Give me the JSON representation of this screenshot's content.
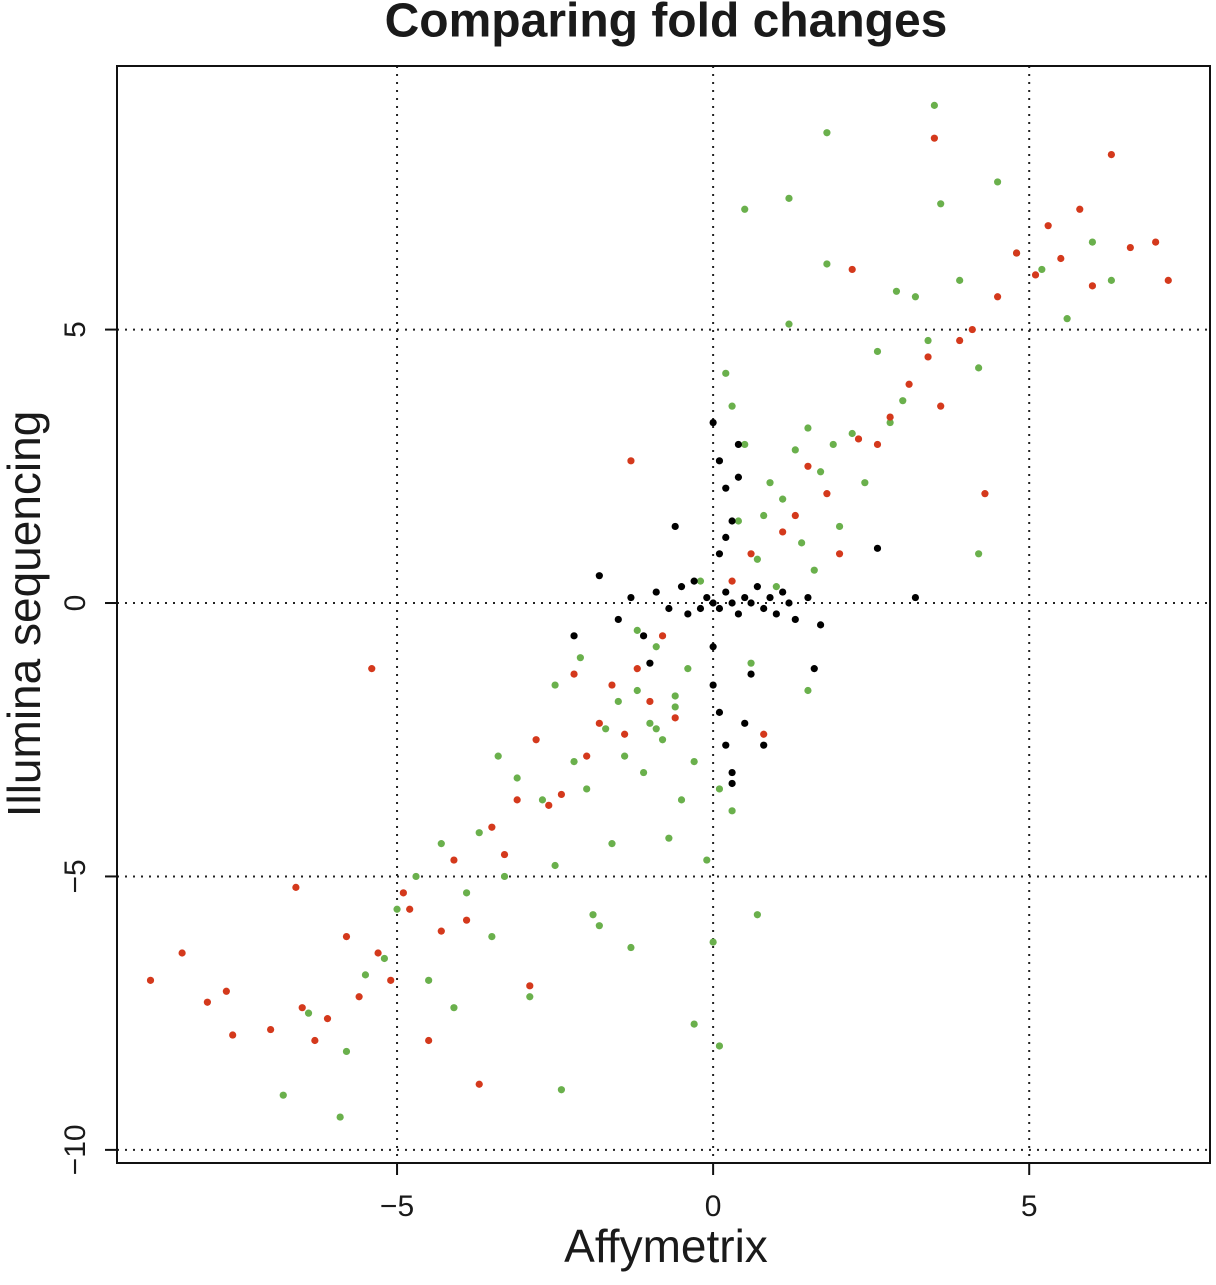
{
  "chart_data": {
    "type": "scatter",
    "title": "Comparing fold changes",
    "x_label": "Affymetrix",
    "y_label": "Illumina sequencing",
    "xlim": [
      -9.43,
      7.86
    ],
    "ylim": [
      -10.24,
      9.82
    ],
    "xticks": [
      {
        "value": -5,
        "label": "−5"
      },
      0,
      5
    ],
    "yticks": [
      {
        "value": -10,
        "label": "−10"
      },
      {
        "value": -5,
        "label": "−5"
      },
      0,
      5
    ],
    "grid": true,
    "series": [
      {
        "color": "#6ab04c",
        "x": [
          -6.8,
          -6.4,
          -5.9,
          -5.8,
          -5.5,
          -5.2,
          -5,
          -4.7,
          -4.5,
          -4.3,
          -4.1,
          -3.9,
          -3.7,
          -3.5,
          -3.3,
          -3.1,
          -2.9,
          -2.7,
          -2.5,
          -2.4,
          -2.2,
          -2,
          -1.9,
          -1.7,
          -1.6,
          -1.5,
          -1.4,
          -1.3,
          -1.2,
          -1.1,
          -1,
          -0.9,
          -0.8,
          -0.7,
          -0.6,
          -0.5,
          -0.4,
          -0.3,
          -0.2,
          -0.1,
          0,
          0.1,
          0.2,
          0.3,
          0.4,
          0.5,
          0.6,
          0.7,
          0.8,
          0.9,
          1,
          1.1,
          1.2,
          1.3,
          1.4,
          1.5,
          1.6,
          1.7,
          1.8,
          1.9,
          2,
          2.2,
          2.4,
          2.6,
          2.8,
          3,
          3.2,
          3.4,
          3.6,
          3.9,
          4.2,
          4.5,
          4.8,
          5.2,
          5.6,
          6,
          6.3,
          1.8,
          3.5,
          0.5,
          1.2,
          -0.6,
          -1.2,
          -2.5,
          -0.3,
          0.1,
          -1.8,
          -2.1,
          -3.4,
          0.7,
          1.5,
          -0.9,
          0.3,
          2.9,
          4.2
        ],
        "values": [
          -9,
          -7.5,
          -9.4,
          -8.2,
          -6.8,
          -6.5,
          -5.6,
          -5,
          -6.9,
          -4.4,
          -7.4,
          -5.3,
          -4.2,
          -6.1,
          -5,
          -3.2,
          -7.2,
          -3.6,
          -4.8,
          -8.9,
          -2.9,
          -3.4,
          -5.7,
          -2.3,
          -4.4,
          -1.8,
          -2.8,
          -6.3,
          -1.6,
          -3.1,
          -2.2,
          -0.8,
          -2.5,
          -4.3,
          -1.7,
          -3.6,
          -1.2,
          -2.9,
          0.4,
          -4.7,
          -6.2,
          -3.4,
          4.2,
          3.6,
          1.5,
          2.9,
          -1.1,
          0.8,
          1.6,
          2.2,
          0.3,
          1.9,
          5.1,
          2.8,
          1.1,
          3.2,
          0.6,
          2.4,
          6.2,
          2.9,
          1.4,
          3.1,
          2.2,
          4.6,
          3.3,
          3.7,
          5.6,
          4.8,
          7.3,
          5.9,
          4.3,
          7.7,
          6.4,
          6.1,
          5.2,
          6.6,
          5.9,
          8.6,
          9.1,
          7.2,
          7.4,
          -1.9,
          -0.5,
          -1.5,
          -7.7,
          -8.1,
          -5.9,
          -1,
          -2.8,
          -5.7,
          -1.6,
          -2.3,
          -3.8,
          5.7,
          0.9
        ]
      },
      {
        "color": "#d4391c",
        "x": [
          -8.9,
          -8.4,
          -8,
          -7.7,
          -7.6,
          -7,
          -6.6,
          -6.5,
          -6.3,
          -6.1,
          -5.8,
          -5.6,
          -5.4,
          -5.3,
          -5.1,
          -4.9,
          -4.8,
          -4.5,
          -4.3,
          -4.1,
          -3.9,
          -3.7,
          -3.5,
          -3.3,
          -3.1,
          -2.9,
          -2.8,
          -2.6,
          -2.4,
          -2.2,
          -2,
          -1.8,
          -1.6,
          -1.4,
          -1.3,
          -1.2,
          -1,
          -0.8,
          -0.6,
          0.3,
          0.6,
          0.8,
          1.1,
          1.3,
          1.5,
          1.8,
          2,
          2.3,
          2.6,
          2.8,
          3.1,
          3.4,
          3.6,
          3.9,
          4.1,
          4.3,
          4.5,
          4.8,
          5.1,
          5.3,
          5.5,
          5.8,
          6,
          6.3,
          6.6,
          7,
          7.2,
          3.5,
          2.2
        ],
        "values": [
          -6.9,
          -6.4,
          -7.3,
          -7.1,
          -7.9,
          -7.8,
          -5.2,
          -7.4,
          -8,
          -7.6,
          -6.1,
          -7.2,
          -1.2,
          -6.4,
          -6.9,
          -5.3,
          -5.6,
          -8,
          -6,
          -4.7,
          -5.8,
          -8.8,
          -4.1,
          -4.6,
          -3.6,
          -7,
          -2.5,
          -3.7,
          -3.5,
          -1.3,
          -2.8,
          -2.2,
          -1.5,
          -2.4,
          2.6,
          -1.2,
          -1.8,
          -0.6,
          -2.1,
          0.4,
          0.9,
          -2.4,
          1.3,
          1.6,
          2.5,
          2,
          0.9,
          3,
          2.9,
          3.4,
          4,
          4.5,
          3.6,
          4.8,
          5,
          2,
          5.6,
          6.4,
          6,
          6.9,
          6.3,
          7.2,
          5.8,
          8.2,
          6.5,
          6.6,
          5.9,
          8.5,
          6.1
        ]
      },
      {
        "color": "#000000",
        "x": [
          -1.5,
          -1.3,
          -1.1,
          -0.9,
          -0.7,
          -0.5,
          -0.4,
          -0.3,
          -0.2,
          -0.1,
          0,
          0.1,
          0.2,
          0.3,
          0.4,
          0.5,
          0.6,
          0.7,
          0.8,
          0.9,
          1,
          1.1,
          1.2,
          1.3,
          1.5,
          1.7,
          -1.8,
          -2.2,
          -1,
          0,
          0.1,
          0.2,
          0.3,
          0,
          0.1,
          0.2,
          0.3,
          0.1,
          0.2,
          0,
          0.3,
          0.4,
          0.5,
          0.4,
          0.6,
          2.6,
          3.2,
          1.6,
          0.8,
          -0.6
        ],
        "values": [
          -0.3,
          0.1,
          -0.6,
          0.2,
          -0.1,
          0.3,
          -0.2,
          0.4,
          -0.1,
          0.1,
          0,
          -0.1,
          0.2,
          0,
          -0.2,
          0.1,
          0,
          0.3,
          -0.1,
          0.1,
          -0.2,
          0.2,
          0,
          -0.3,
          0.1,
          -0.4,
          0.5,
          -0.6,
          -1.1,
          3.3,
          2.6,
          2.1,
          1.5,
          -1.5,
          -2,
          -2.6,
          -3.1,
          0.9,
          1.2,
          -0.8,
          -3.3,
          2.3,
          -2.2,
          2.9,
          -1.3,
          1,
          0.1,
          -1.2,
          -2.6,
          1.4
        ]
      }
    ]
  }
}
